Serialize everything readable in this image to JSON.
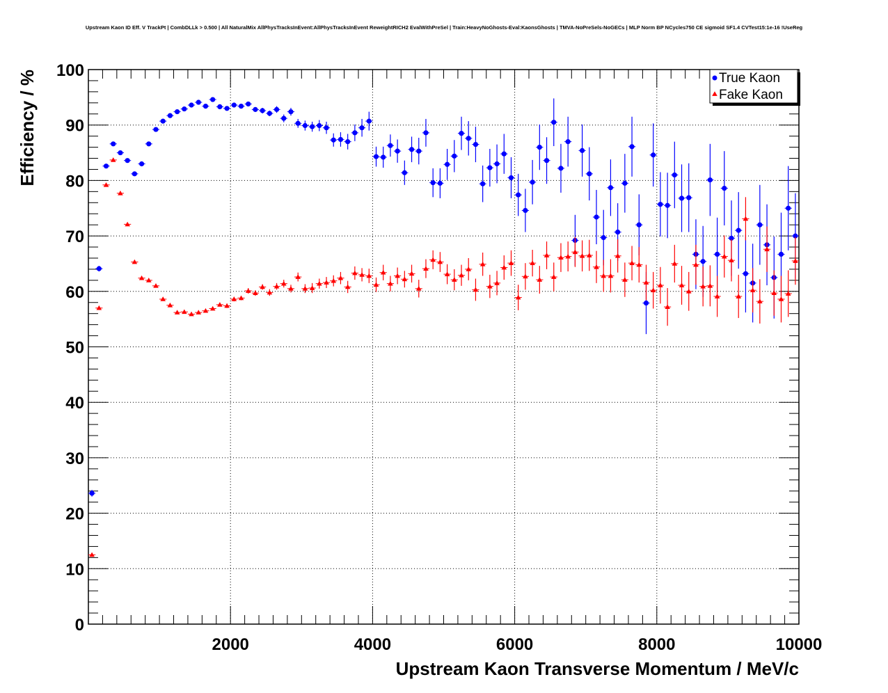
{
  "chart_data": {
    "type": "scatter",
    "title": "Upstream Kaon ID Eff. V TrackPt | CombDLLk > 0.500 | All NaturalMix AllPhysTracksInEvent:AllPhysTracksInEvent ReweightRICH2 EvalWithPreSel | Train:HeavyNoGhosts-Eval:KaonsGhosts | TMVA-NoPreSels-NoGECs | MLP Norm BP NCycles750 CE sigmoid SF1.4 CVTest15:1e-16 !UseReg",
    "xlabel": "Upstream Kaon Transverse Momentum / MeV/c",
    "ylabel": "Efficiency / %",
    "xlim": [
      0,
      10000
    ],
    "ylim": [
      0,
      100
    ],
    "grid": true,
    "legend_position": "top-right",
    "x_ticks": [
      2000,
      4000,
      6000,
      8000,
      10000
    ],
    "x_tick_labels": [
      "2000",
      "4000",
      "6000",
      "8000",
      "10000"
    ],
    "y_ticks": [
      0,
      10,
      20,
      30,
      40,
      50,
      60,
      70,
      80,
      90,
      100
    ],
    "y_tick_labels": [
      "0",
      "10",
      "20",
      "30",
      "40",
      "50",
      "60",
      "70",
      "80",
      "90",
      "100"
    ],
    "x": [
      50,
      150,
      250,
      350,
      450,
      550,
      650,
      750,
      850,
      950,
      1050,
      1150,
      1250,
      1350,
      1450,
      1550,
      1650,
      1750,
      1850,
      1950,
      2050,
      2150,
      2250,
      2350,
      2450,
      2550,
      2650,
      2750,
      2850,
      2950,
      3050,
      3150,
      3250,
      3350,
      3450,
      3550,
      3650,
      3750,
      3850,
      3950,
      4050,
      4150,
      4250,
      4350,
      4450,
      4550,
      4650,
      4750,
      4850,
      4950,
      5050,
      5150,
      5250,
      5350,
      5450,
      5550,
      5650,
      5750,
      5850,
      5950,
      6050,
      6150,
      6250,
      6350,
      6450,
      6550,
      6650,
      6750,
      6850,
      6950,
      7050,
      7150,
      7250,
      7350,
      7450,
      7550,
      7650,
      7750,
      7850,
      7950,
      8050,
      8150,
      8250,
      8350,
      8450,
      8550,
      8650,
      8750,
      8850,
      8950,
      9050,
      9150,
      9250,
      9350,
      9450,
      9550,
      9650,
      9750,
      9850,
      9950
    ],
    "series": [
      {
        "name": "True Kaon",
        "color": "#0000ff",
        "marker": "circle",
        "values": [
          23.6,
          64.1,
          82.6,
          86.6,
          85.0,
          83.6,
          81.2,
          83.0,
          86.6,
          89.2,
          90.7,
          91.7,
          92.4,
          92.9,
          93.6,
          94.1,
          93.4,
          94.6,
          93.3,
          93.0,
          93.6,
          93.4,
          93.8,
          92.8,
          92.6,
          92.1,
          92.8,
          91.2,
          92.4,
          90.3,
          89.9,
          89.7,
          89.9,
          89.5,
          87.3,
          87.4,
          87.0,
          88.6,
          89.5,
          90.7,
          84.3,
          84.2,
          86.3,
          85.3,
          81.4,
          85.6,
          85.3,
          88.6,
          79.6,
          79.5,
          82.9,
          84.4,
          88.5,
          87.6,
          86.5,
          79.4,
          82.3,
          83.0,
          84.8,
          80.5,
          77.4,
          74.6,
          79.7,
          86.0,
          83.6,
          90.5,
          82.2,
          87.0,
          69.2,
          85.4,
          81.2,
          73.4,
          69.7,
          78.7,
          70.7,
          79.5,
          86.1,
          72.0,
          57.9,
          84.6,
          75.7,
          75.5,
          81.0,
          76.8,
          76.9,
          66.7,
          65.4,
          80.1,
          66.7,
          78.6,
          69.6,
          71.0,
          63.2,
          61.5,
          72.0,
          68.4,
          62.5,
          66.7,
          75.0,
          70.0
        ],
        "errors": [
          0.6,
          0.5,
          0.4,
          0.4,
          0.4,
          0.4,
          0.4,
          0.4,
          0.4,
          0.3,
          0.3,
          0.3,
          0.3,
          0.3,
          0.3,
          0.3,
          0.3,
          0.3,
          0.3,
          0.3,
          0.3,
          0.4,
          0.4,
          0.4,
          0.5,
          0.5,
          0.6,
          0.7,
          0.7,
          0.8,
          0.9,
          0.9,
          1.0,
          1.1,
          1.2,
          1.3,
          1.4,
          1.5,
          1.6,
          1.7,
          1.8,
          1.9,
          2.0,
          2.1,
          2.2,
          2.3,
          2.4,
          2.5,
          2.6,
          2.7,
          2.8,
          2.9,
          3.0,
          3.1,
          3.2,
          3.3,
          3.4,
          3.5,
          3.6,
          3.7,
          3.8,
          3.9,
          4.0,
          4.1,
          4.2,
          4.3,
          4.4,
          4.5,
          4.6,
          4.7,
          4.8,
          4.9,
          5.0,
          5.1,
          5.2,
          5.3,
          5.4,
          5.5,
          5.6,
          5.7,
          5.8,
          5.9,
          6.0,
          6.1,
          6.2,
          6.3,
          6.4,
          6.5,
          6.6,
          6.7,
          6.8,
          6.9,
          7.0,
          7.1,
          7.2,
          7.3,
          7.4,
          7.5,
          7.6,
          7.7
        ]
      },
      {
        "name": "Fake Kaon",
        "color": "#ff0000",
        "marker": "triangle",
        "values": [
          12.5,
          57.0,
          79.2,
          83.7,
          77.7,
          72.1,
          65.3,
          62.4,
          62.0,
          61.0,
          58.6,
          57.5,
          56.2,
          56.3,
          55.9,
          56.2,
          56.5,
          56.9,
          57.6,
          57.4,
          58.6,
          58.8,
          60.1,
          59.7,
          60.8,
          59.8,
          60.9,
          61.4,
          60.5,
          62.6,
          60.5,
          60.6,
          61.4,
          61.6,
          61.9,
          62.4,
          60.8,
          63.3,
          63.0,
          62.8,
          61.2,
          63.4,
          61.4,
          62.8,
          62.2,
          63.2,
          60.5,
          64.1,
          65.7,
          65.3,
          63.1,
          62.1,
          62.9,
          64.0,
          60.3,
          64.9,
          60.9,
          61.5,
          64.3,
          65.1,
          58.9,
          62.7,
          65.1,
          62.1,
          66.5,
          62.6,
          66.1,
          66.3,
          67.1,
          66.4,
          66.5,
          64.4,
          62.8,
          62.8,
          66.4,
          62.1,
          65.1,
          64.8,
          61.6,
          60.2,
          61.1,
          57.2,
          65.0,
          61.1,
          60.0,
          64.8,
          60.9,
          61.0,
          59.1,
          66.3,
          65.6,
          59.1,
          73.1,
          60.2,
          58.2,
          67.6,
          59.7,
          58.6,
          59.6,
          65.5
        ],
        "errors": [
          0.3,
          0.2,
          0.2,
          0.2,
          0.2,
          0.2,
          0.2,
          0.2,
          0.2,
          0.2,
          0.2,
          0.2,
          0.2,
          0.2,
          0.2,
          0.3,
          0.3,
          0.3,
          0.3,
          0.4,
          0.4,
          0.4,
          0.5,
          0.5,
          0.5,
          0.6,
          0.6,
          0.7,
          0.7,
          0.8,
          0.8,
          0.9,
          0.9,
          1.0,
          1.0,
          1.1,
          1.1,
          1.2,
          1.2,
          1.3,
          1.3,
          1.4,
          1.4,
          1.5,
          1.5,
          1.6,
          1.6,
          1.7,
          1.7,
          1.8,
          1.8,
          1.9,
          1.9,
          2.0,
          2.0,
          2.1,
          2.1,
          2.2,
          2.2,
          2.3,
          2.3,
          2.4,
          2.4,
          2.5,
          2.5,
          2.6,
          2.6,
          2.7,
          2.7,
          2.8,
          2.8,
          2.9,
          2.9,
          3.0,
          3.0,
          3.1,
          3.1,
          3.2,
          3.2,
          3.3,
          3.3,
          3.4,
          3.4,
          3.5,
          3.5,
          3.6,
          3.6,
          3.7,
          3.7,
          3.8,
          3.8,
          3.9,
          3.9,
          4.0,
          4.0,
          4.1,
          4.1,
          4.2,
          4.2,
          4.3
        ]
      }
    ]
  }
}
